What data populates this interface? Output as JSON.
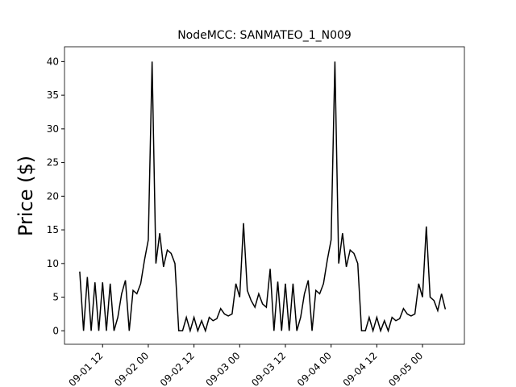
{
  "chart_data": {
    "type": "line",
    "title": "NodeMCC: SANMATEO_1_N009",
    "y_label": "Price ($)",
    "x": [
      "09-01 06",
      "09-01 07",
      "09-01 08",
      "09-01 09",
      "09-01 10",
      "09-01 11",
      "09-01 12",
      "09-01 13",
      "09-01 14",
      "09-01 15",
      "09-01 16",
      "09-01 17",
      "09-01 18",
      "09-01 19",
      "09-01 20",
      "09-01 21",
      "09-01 22",
      "09-01 23",
      "09-02 00",
      "09-02 01",
      "09-02 02",
      "09-02 03",
      "09-02 04",
      "09-02 05",
      "09-02 06",
      "09-02 07",
      "09-02 08",
      "09-02 09",
      "09-02 10",
      "09-02 11",
      "09-02 12",
      "09-02 13",
      "09-02 14",
      "09-02 15",
      "09-02 16",
      "09-02 17",
      "09-02 18",
      "09-02 19",
      "09-02 20",
      "09-02 21",
      "09-02 22",
      "09-02 23",
      "09-03 00",
      "09-03 01",
      "09-03 02",
      "09-03 03",
      "09-03 04",
      "09-03 05",
      "09-03 06",
      "09-03 07",
      "09-03 08",
      "09-03 09",
      "09-03 10",
      "09-03 11",
      "09-03 12",
      "09-03 13",
      "09-03 14",
      "09-03 15",
      "09-03 16",
      "09-03 17",
      "09-03 18",
      "09-03 19",
      "09-03 20",
      "09-03 21",
      "09-03 22",
      "09-03 23",
      "09-04 00",
      "09-04 01",
      "09-04 02",
      "09-04 03",
      "09-04 04",
      "09-04 05",
      "09-04 06",
      "09-04 07",
      "09-04 08",
      "09-04 09",
      "09-04 10",
      "09-04 11",
      "09-04 12",
      "09-04 13",
      "09-04 14",
      "09-04 15",
      "09-04 16",
      "09-04 17",
      "09-04 18",
      "09-04 19",
      "09-04 20",
      "09-04 21",
      "09-04 22",
      "09-04 23",
      "09-05 00",
      "09-05 01",
      "09-05 02",
      "09-05 03",
      "09-05 04",
      "09-05 05",
      "09-05 06"
    ],
    "series": [
      {
        "name": "NodeMCC",
        "color": "#000000",
        "values": [
          8.8,
          0,
          8,
          0,
          7.2,
          0,
          7.2,
          0,
          7,
          0,
          2,
          5.5,
          7.5,
          0,
          6,
          5.5,
          7,
          10.5,
          13.5,
          40,
          10,
          14.5,
          9.5,
          12,
          11.5,
          10,
          0,
          0,
          2,
          0,
          2,
          0,
          1.5,
          0,
          2,
          1.5,
          1.8,
          3.3,
          2.5,
          2.2,
          2.5,
          7,
          5,
          16,
          6,
          4.5,
          3.5,
          5.5,
          4,
          3.5,
          9.2,
          0,
          7.3,
          0,
          7,
          0,
          7,
          0,
          2,
          5.5,
          7.5,
          0,
          6,
          5.5,
          7,
          10.5,
          13.5,
          40,
          10,
          14.5,
          9.5,
          12,
          11.5,
          10,
          0,
          0,
          2,
          0,
          2,
          0,
          1.5,
          0,
          2,
          1.5,
          1.8,
          3.3,
          2.5,
          2.2,
          2.5,
          7,
          5,
          15.5,
          5,
          4.5,
          3,
          5.5,
          3.2
        ]
      }
    ],
    "xlim": [
      "09-01 02",
      "09-05 11"
    ],
    "xticks": [
      "09-01 12",
      "09-02 00",
      "09-02 12",
      "09-03 00",
      "09-03 12",
      "09-04 00",
      "09-04 12",
      "09-05 00"
    ],
    "ylim": [
      -2.0,
      42.2
    ],
    "yticks": [
      0,
      5,
      10,
      15,
      20,
      25,
      30,
      35,
      40
    ]
  }
}
